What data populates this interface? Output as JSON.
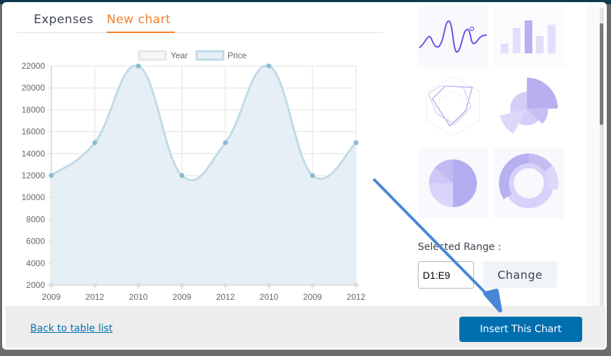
{
  "tabs": [
    {
      "label": "Expenses",
      "active": false
    },
    {
      "label": "New chart",
      "active": true
    }
  ],
  "chart_thumbnails": [
    {
      "type": "line",
      "icon": "line-chart-icon"
    },
    {
      "type": "bar",
      "icon": "bar-chart-icon"
    },
    {
      "type": "radar",
      "icon": "radar-chart-icon"
    },
    {
      "type": "polar-area",
      "icon": "polar-area-chart-icon"
    },
    {
      "type": "pie",
      "icon": "pie-chart-icon"
    },
    {
      "type": "doughnut",
      "icon": "doughnut-chart-icon"
    }
  ],
  "selected_range": {
    "label": "Selected Range :",
    "value": "D1:E9",
    "change_label": "Change"
  },
  "footer": {
    "back_link": "Back to table list",
    "insert_label": "Insert This Chart"
  },
  "colors": {
    "accent": "#f57f25",
    "primary_button": "#006fb0",
    "price_line": "#c0dbe6",
    "price_fill": "#e6eff6",
    "annotation_arrow": "#4a86d8"
  },
  "chart_data": {
    "type": "line",
    "categories": [
      "2009",
      "2012",
      "2010",
      "2009",
      "2012",
      "2010",
      "2009",
      "2012"
    ],
    "series": [
      {
        "name": "Year",
        "values": [
          2009,
          2012,
          2010,
          2009,
          2012,
          2010,
          2009,
          2012
        ],
        "color": "#e0e0e0"
      },
      {
        "name": "Price",
        "values": [
          12000,
          15000,
          22000,
          12000,
          15000,
          22000,
          12000,
          15000
        ],
        "color": "#c0dbe6"
      }
    ],
    "ylim": [
      2000,
      22000
    ],
    "yticks": [
      2000,
      4000,
      6000,
      8000,
      10000,
      12000,
      14000,
      16000,
      18000,
      20000,
      22000
    ],
    "legend": "top",
    "grid": true,
    "fill": true
  }
}
